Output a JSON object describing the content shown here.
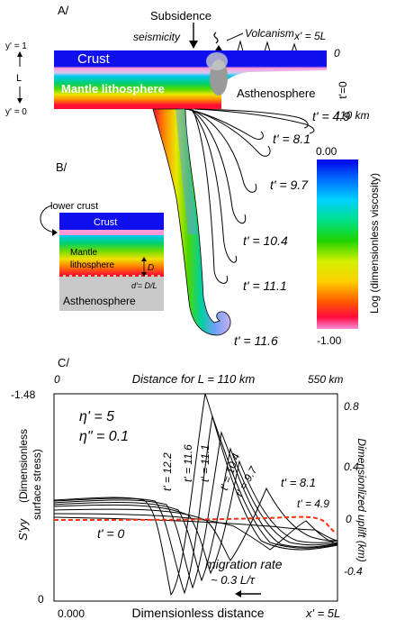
{
  "panel_a": {
    "label": "A/",
    "subsidence": "Subsidence",
    "seismicity": "seismicity",
    "volcanism": "Volcanism",
    "x_end": "x' = 5L",
    "y_top": "y' = 1",
    "y_bottom": "y' = 0",
    "L": "L",
    "crust": "Crust",
    "mantle_lithosphere": "Mantle lithosphere",
    "asthenosphere": "Asthenosphere",
    "depth": "110 km",
    "t0": "t'=0",
    "t_labels": [
      "t' = 4.9",
      "t' = 8.1",
      "t' = 9.7",
      "t' = 10.4",
      "t' = 11.1",
      "t' = 11.6"
    ],
    "zero": "0"
  },
  "colorbar": {
    "top": "0.00",
    "bottom": "-1.00",
    "label": "Log (dimensionless viscosity)"
  },
  "panel_b": {
    "label": "B/",
    "lower_crust": "lower crust",
    "crust": "Crust",
    "mantle_lithosphere_1": "Mantle",
    "mantle_lithosphere_2": "lithosphere",
    "D": "D",
    "d_prime": "d'= D/L",
    "asthenosphere": "Asthenosphere"
  },
  "panel_c": {
    "label": "C/",
    "top_left": "0",
    "top_title": "Distance for L = 110 km",
    "top_right": "550 km",
    "left_top_tick": "-1.48",
    "left_bottom_tick": "0",
    "eta1": "η' = 5",
    "eta2": "η\" = 0.1",
    "ylabel_left_1": "S'yy",
    "ylabel_left_2": "(Dimensionless",
    "ylabel_left_3": "surface stress)",
    "ylabel_right": "Dimensionlized uplift (km)",
    "right_ticks": [
      "0.8",
      "0.4",
      "0",
      "-0.4"
    ],
    "t0": "t' = 0",
    "curve_labels": [
      "t' = 12.2",
      "t' = 11.6",
      "t' = 11.1",
      "t' = 10.4",
      "t' = 9.7",
      "t' = 8.1",
      "t' = 4.9"
    ],
    "migration_1": "migration rate",
    "migration_2": "~ 0.3 L/τ",
    "x_left": "0.000",
    "xlabel": "Dimensionless distance",
    "x_right": "x' = 5L"
  }
}
